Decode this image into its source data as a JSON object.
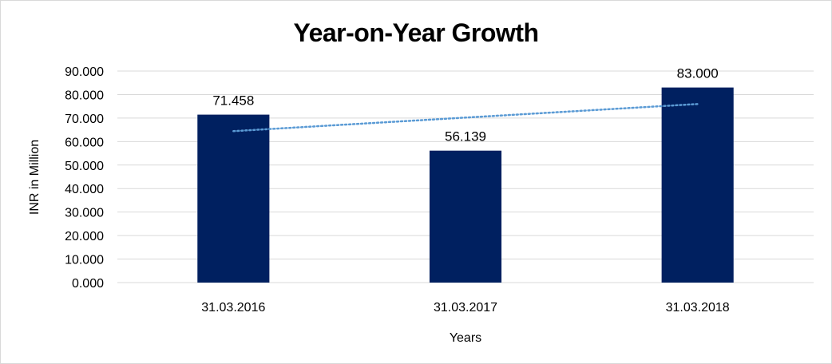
{
  "chart_data": {
    "type": "bar",
    "title": "Year-on-Year Growth",
    "xlabel": "Years",
    "ylabel": "INR in Million",
    "categories": [
      "31.03.2016",
      "31.03.2017",
      "31.03.2018"
    ],
    "values": [
      71.458,
      56.139,
      83.0
    ],
    "data_labels": [
      "71.458",
      "56.139",
      "83.000"
    ],
    "ylim": [
      0,
      90
    ],
    "yticks": [
      0,
      10,
      20,
      30,
      40,
      50,
      60,
      70,
      80,
      90
    ],
    "ytick_labels": [
      "0.000",
      "10.000",
      "20.000",
      "30.000",
      "40.000",
      "50.000",
      "60.000",
      "70.000",
      "80.000",
      "90.000"
    ],
    "grid": true,
    "legend": "none",
    "trendline": {
      "type": "linear",
      "style": "dotted"
    },
    "colors": {
      "bar": "#002060",
      "trendline": "#5b9bd5",
      "grid": "#d9d9d9"
    }
  }
}
